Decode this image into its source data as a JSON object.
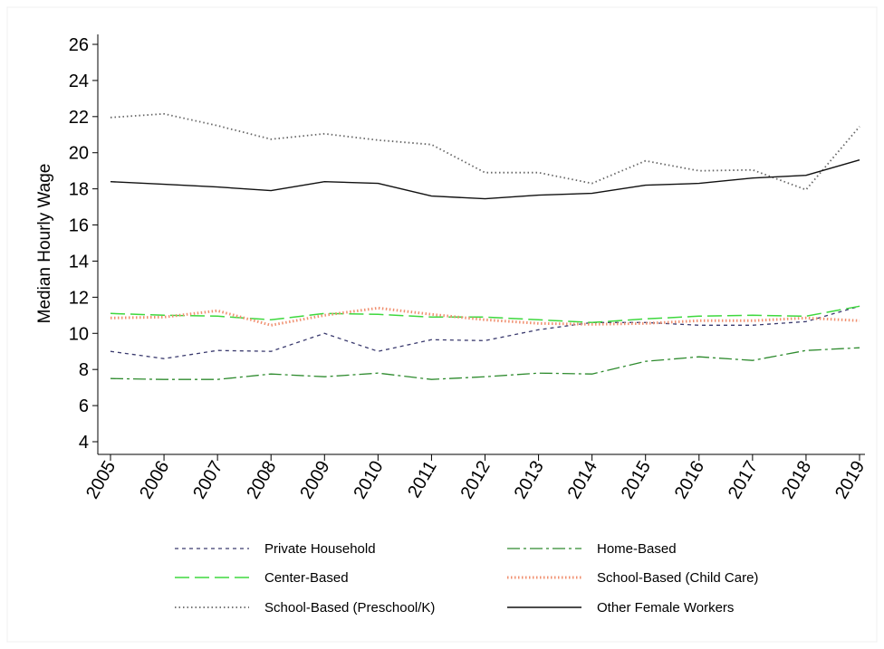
{
  "chart_data": {
    "type": "line",
    "title": "",
    "xlabel": "",
    "ylabel": "Median Hourly Wage",
    "x": [
      2005,
      2006,
      2007,
      2008,
      2009,
      2010,
      2011,
      2012,
      2013,
      2014,
      2015,
      2016,
      2017,
      2018,
      2019
    ],
    "x_tick_labels": [
      "2005",
      "2006",
      "2007",
      "2008",
      "2009",
      "2010",
      "2011",
      "2012",
      "2013",
      "2014",
      "2015",
      "2016",
      "2017",
      "2018",
      "2019"
    ],
    "ylim": [
      3.6,
      26.6
    ],
    "y_ticks": [
      4,
      6,
      8,
      10,
      12,
      14,
      16,
      18,
      20,
      22,
      24,
      26
    ],
    "y_tick_labels": [
      "4",
      "6",
      "8",
      "10",
      "12",
      "14",
      "16",
      "18",
      "20",
      "22",
      "24",
      "26"
    ],
    "grid": false,
    "legend_position": "bottom",
    "series": [
      {
        "name": "Private Household",
        "color": "#3a3a6e",
        "dash": "4,4",
        "width": 1.3,
        "values": [
          9.0,
          8.6,
          9.05,
          9.0,
          10.0,
          9.0,
          9.65,
          9.6,
          10.2,
          10.6,
          10.6,
          10.45,
          10.45,
          10.65,
          11.5
        ]
      },
      {
        "name": "Home-Based",
        "color": "#2e8b2e",
        "dash": "14,4,3,4",
        "width": 1.3,
        "values": [
          7.5,
          7.45,
          7.45,
          7.75,
          7.6,
          7.8,
          7.45,
          7.6,
          7.8,
          7.75,
          8.45,
          8.7,
          8.5,
          9.05,
          9.2
        ]
      },
      {
        "name": "Center-Based",
        "color": "#3ed83e",
        "dash": "16,6",
        "width": 1.5,
        "values": [
          11.1,
          11.0,
          10.95,
          10.75,
          11.1,
          11.05,
          10.9,
          10.9,
          10.75,
          10.6,
          10.8,
          10.95,
          11.0,
          10.95,
          11.5
        ]
      },
      {
        "name": "School-Based (Child Care)",
        "color": "#f09070",
        "dash": "1.5,2.5",
        "width": 3,
        "values": [
          10.85,
          10.9,
          11.25,
          10.45,
          11.0,
          11.4,
          11.05,
          10.75,
          10.55,
          10.5,
          10.55,
          10.7,
          10.7,
          10.85,
          10.7
        ]
      },
      {
        "name": "School-Based (Preschool/K)",
        "color": "#666666",
        "dash": "1.5,3",
        "width": 1.8,
        "values": [
          21.95,
          22.15,
          21.5,
          20.75,
          21.05,
          20.7,
          20.45,
          18.9,
          18.9,
          18.3,
          19.55,
          19.0,
          19.05,
          17.95,
          21.45
        ]
      },
      {
        "name": "Other Female Workers",
        "color": "#111111",
        "dash": "",
        "width": 1.4,
        "values": [
          18.4,
          18.25,
          18.1,
          17.9,
          18.4,
          18.3,
          17.6,
          17.45,
          17.65,
          17.75,
          18.2,
          18.3,
          18.6,
          18.75,
          19.6
        ]
      }
    ]
  }
}
